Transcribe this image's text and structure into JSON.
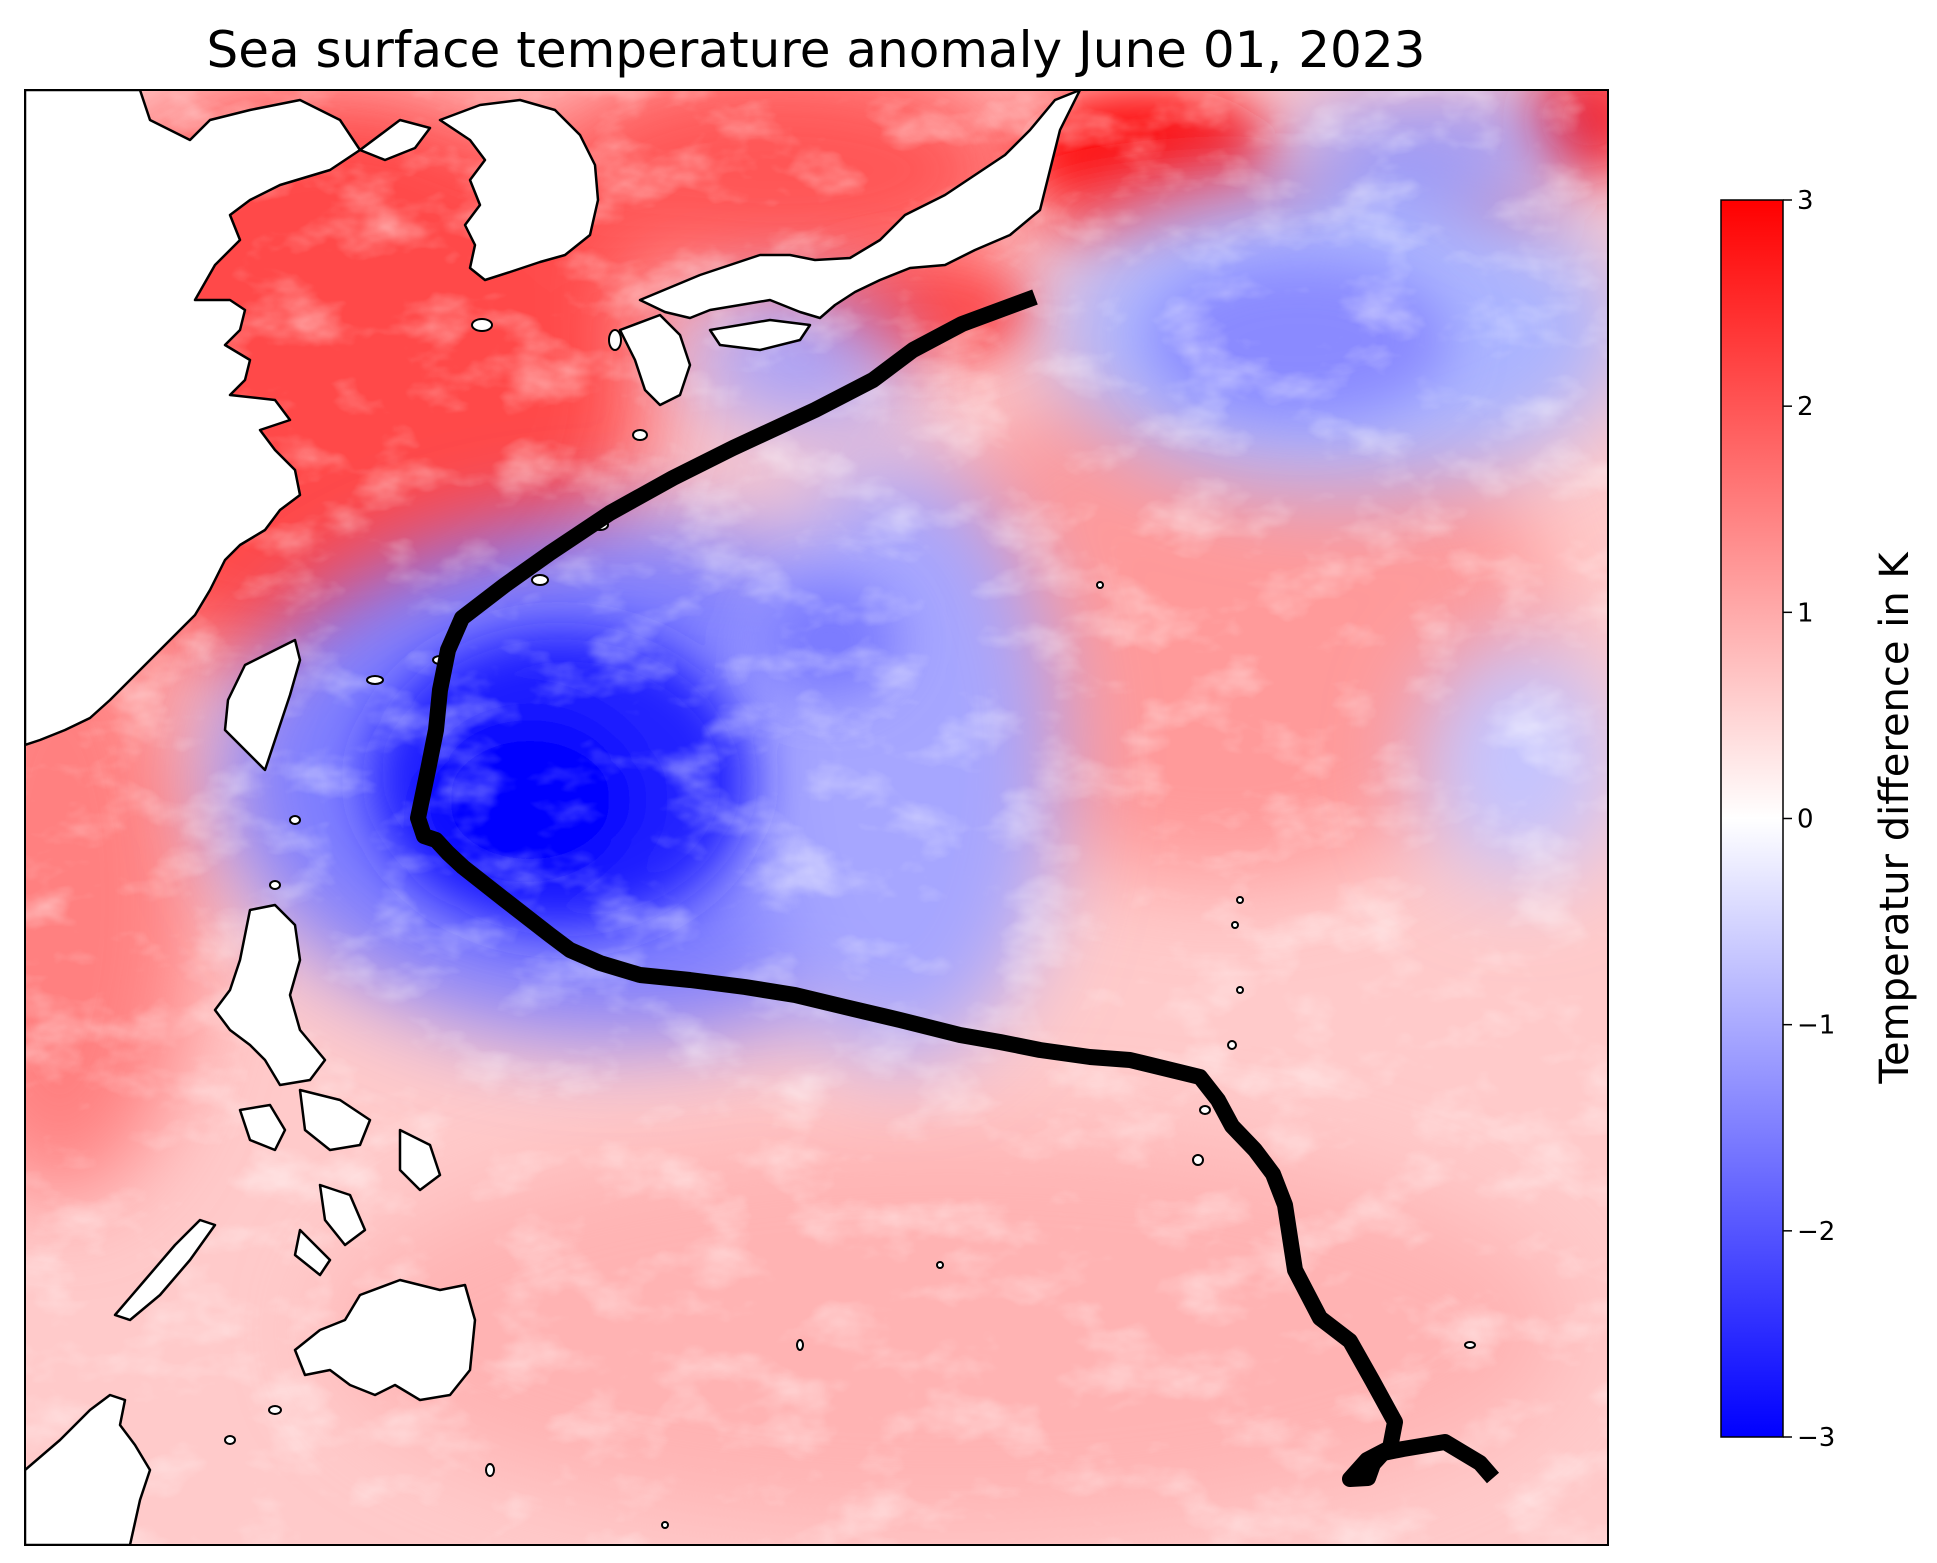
{
  "title": "Sea surface temperature anomaly June 01, 2023",
  "colorbar": {
    "label": "Temperatur difference in K",
    "ticks": [
      "3",
      "2",
      "1",
      "0",
      "−1",
      "−2",
      "−3"
    ],
    "vmin": -3,
    "vmax": 3,
    "cmap": "bwr",
    "colors": {
      "max": "#ff0000",
      "mid": "#ffffff",
      "min": "#0000ff"
    }
  },
  "map": {
    "field": "sea surface temperature anomaly",
    "land_color": "#ffffff",
    "coastline_color": "#000000",
    "track_color": "#000000",
    "anomaly_regions": [
      {
        "name": "east-china-sea-warm",
        "value": 2.2
      },
      {
        "name": "kuroshio-extension-warm",
        "value": 3.0
      },
      {
        "name": "east-of-japan-cool",
        "value": -1.3
      },
      {
        "name": "south-of-honshu-cool",
        "value": -1.2
      },
      {
        "name": "philippine-sea-cool-core",
        "value": -3.0
      },
      {
        "name": "central-pacific-cool",
        "value": -1.2
      },
      {
        "name": "tropical-warm",
        "value": 0.8
      }
    ]
  }
}
